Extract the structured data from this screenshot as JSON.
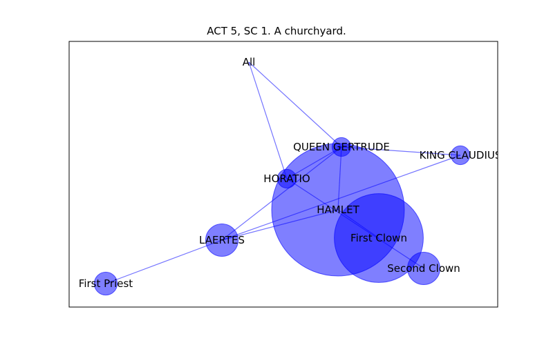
{
  "title": "ACT 5, SC 1. A churchyard.",
  "colors": {
    "node_fill": "#0000ff",
    "node_fill_opacity": 0.5,
    "edge": "#0000ff",
    "edge_opacity": 0.55,
    "frame": "#000000"
  },
  "nodes": [
    {
      "id": "all",
      "label": "All",
      "weight": 0
    },
    {
      "id": "gertrude",
      "label": "QUEEN GERTRUDE",
      "weight": 2
    },
    {
      "id": "claudius",
      "label": "KING CLAUDIUS",
      "weight": 2
    },
    {
      "id": "horatio",
      "label": "HORATIO",
      "weight": 2
    },
    {
      "id": "hamlet",
      "label": "HAMLET",
      "weight": 100
    },
    {
      "id": "first_clown",
      "label": "First Clown",
      "weight": 45
    },
    {
      "id": "laertes",
      "label": "LAERTES",
      "weight": 6
    },
    {
      "id": "second_clown",
      "label": "Second Clown",
      "weight": 6
    },
    {
      "id": "first_priest",
      "label": "First Priest",
      "weight": 3
    }
  ],
  "edges": [
    [
      "all",
      "gertrude"
    ],
    [
      "all",
      "horatio"
    ],
    [
      "gertrude",
      "claudius"
    ],
    [
      "gertrude",
      "horatio"
    ],
    [
      "gertrude",
      "hamlet"
    ],
    [
      "gertrude",
      "laertes"
    ],
    [
      "horatio",
      "second_clown"
    ],
    [
      "hamlet",
      "laertes"
    ],
    [
      "claudius",
      "laertes"
    ],
    [
      "laertes",
      "first_priest"
    ],
    [
      "hamlet",
      "first_clown"
    ]
  ]
}
